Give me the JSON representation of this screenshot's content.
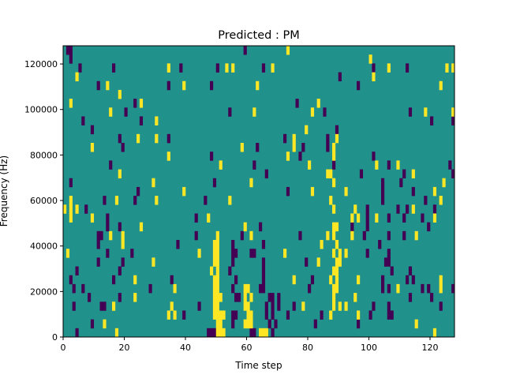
{
  "chart_data": {
    "type": "heatmap",
    "title": "Predicted : PM",
    "xlabel": "Time step",
    "ylabel": "Frequency (Hz)",
    "xlim": [
      0,
      128
    ],
    "ylim": [
      0,
      128000
    ],
    "x_ticks": [
      "0",
      "20",
      "40",
      "60",
      "80",
      "100",
      "120"
    ],
    "y_ticks": [
      "0",
      "20000",
      "40000",
      "60000",
      "80000",
      "100000",
      "120000"
    ],
    "grid": false,
    "n_time_steps": 128,
    "n_freq_bins": 33,
    "row_order": "top-to-bottom (row 0 = highest frequency)",
    "background_level": "mid",
    "colors": {
      "low": "#440154",
      "mid": "#21918c",
      "high": "#fde725"
    },
    "low_cells_by_row": {
      "0": [
        1,
        2,
        59
      ],
      "1": [
        2
      ],
      "2": [
        5,
        16,
        38,
        50,
        65,
        101,
        112
      ],
      "3": [
        90
      ],
      "4": [
        11,
        34,
        48,
        96
      ],
      "6": [
        23,
        76
      ],
      "7": [
        20,
        54,
        85,
        113
      ],
      "8": [
        6,
        25,
        120,
        127
      ],
      "9": [
        9,
        89
      ],
      "10": [
        18,
        34,
        72,
        86
      ],
      "11": [
        19,
        63,
        86,
        78
      ],
      "12": [
        48,
        77,
        101
      ],
      "13": [
        15,
        62,
        88,
        106,
        126
      ],
      "14": [
        66,
        97,
        111,
        127
      ],
      "15": [
        2,
        49,
        104,
        110
      ],
      "16": [
        24,
        73,
        104,
        114
      ],
      "17": [
        13,
        23,
        46,
        104,
        118
      ],
      "18": [
        7,
        99,
        109,
        112,
        121
      ],
      "19": [
        14,
        43,
        99,
        106,
        111,
        117
      ],
      "20": [
        14,
        18,
        64,
        94,
        99,
        119
      ],
      "21": [
        11,
        12,
        43,
        58,
        77,
        98,
        106,
        111
      ],
      "22": [
        11,
        37,
        55,
        65,
        103
      ],
      "23": [
        14,
        22,
        55,
        56,
        61,
        62,
        99,
        106
      ],
      "24": [
        11,
        19,
        55,
        65,
        79,
        105,
        106
      ],
      "25": [
        4,
        18,
        54,
        65,
        107,
        113
      ],
      "26": [
        2,
        16,
        35,
        56,
        65,
        81,
        104,
        112,
        114
      ],
      "27": [
        3,
        6,
        28,
        55,
        64,
        65,
        80,
        104,
        106,
        117,
        119,
        127
      ],
      "28": [
        8,
        18,
        56,
        57,
        67,
        68,
        70,
        113,
        120
      ],
      "29": [
        3,
        12,
        13,
        44,
        66,
        68,
        70,
        75,
        101,
        106,
        123
      ],
      "30": [
        39,
        55,
        56,
        66,
        68,
        73,
        84,
        100,
        106,
        107
      ],
      "31": [
        9,
        55,
        67,
        69,
        82,
        96
      ],
      "32": [
        4,
        47,
        48,
        49,
        61,
        62,
        68
      ]
    },
    "high_cells_by_row": {
      "0": [
        73
      ],
      "1": [
        100
      ],
      "2": [
        34,
        53,
        55,
        68,
        106,
        125,
        127
      ],
      "3": [
        4,
        101
      ],
      "4": [
        14,
        39,
        63,
        123
      ],
      "5": [
        18
      ],
      "6": [
        2,
        25,
        83
      ],
      "7": [
        15,
        62,
        81,
        118,
        127
      ],
      "8": [
        30
      ],
      "9": [
        79
      ],
      "10": [
        24,
        30,
        75,
        89
      ],
      "11": [
        9,
        58,
        75,
        88
      ],
      "12": [
        34,
        73,
        88
      ],
      "13": [
        51,
        80,
        102,
        109
      ],
      "14": [
        18,
        86,
        87,
        114
      ],
      "15": [
        29,
        61,
        88,
        124
      ],
      "16": [
        39,
        81,
        92,
        121
      ],
      "17": [
        2,
        17,
        30,
        54,
        87,
        123
      ],
      "18": [
        0,
        2,
        4,
        88,
        95,
        114
      ],
      "19": [
        2,
        9,
        47,
        94,
        96,
        102,
        121
      ],
      "20": [
        25,
        59,
        88,
        89
      ],
      "21": [
        15,
        19,
        50,
        61,
        86,
        88,
        94,
        115
      ],
      "22": [
        19,
        49,
        50,
        84,
        89
      ],
      "23": [
        1,
        44,
        49,
        50,
        72,
        88,
        90,
        92
      ],
      "24": [
        29,
        49,
        50,
        83,
        89,
        90
      ],
      "25": [
        48,
        50,
        88,
        89
      ],
      "26": [
        23,
        49,
        50,
        75,
        87,
        89,
        96,
        123
      ],
      "27": [
        36,
        49,
        50,
        59,
        60,
        88,
        89,
        109,
        123
      ],
      "28": [
        23,
        49,
        50,
        51,
        59,
        61,
        88,
        95
      ],
      "29": [
        16,
        35,
        49,
        50,
        59,
        60,
        78,
        88,
        90,
        92
      ],
      "30": [
        34,
        36,
        49,
        50,
        51,
        52,
        60,
        61,
        87,
        96
      ],
      "31": [
        13,
        50,
        51,
        59,
        60,
        61,
        115
      ],
      "32": [
        17,
        50,
        51,
        52,
        64,
        65,
        66,
        121
      ]
    }
  }
}
